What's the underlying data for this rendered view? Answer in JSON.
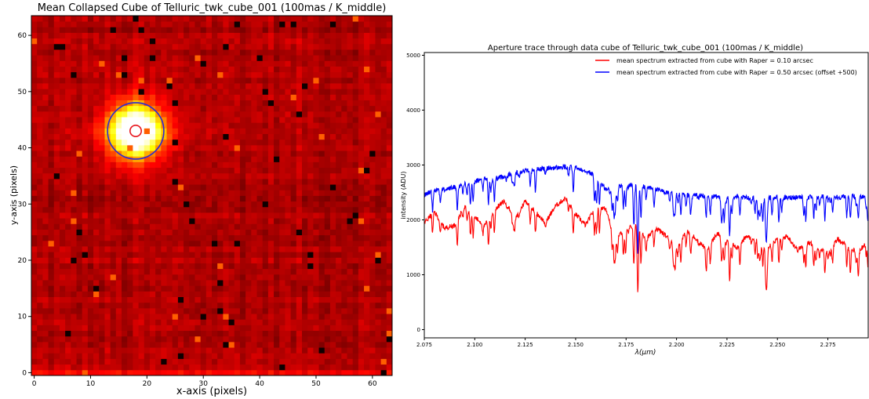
{
  "chart_data": [
    {
      "type": "heatmap",
      "title": "Mean Collapsed Cube of Telluric_twk_cube_001 (100mas / K_middle)",
      "xlabel": "x-axis (pixels)",
      "ylabel": "y-axis (pixels)",
      "xlim": [
        -0.5,
        63.5
      ],
      "ylim": [
        -0.5,
        63.5
      ],
      "xticks": [
        "0",
        "10",
        "20",
        "30",
        "40",
        "50",
        "60"
      ],
      "yticks": [
        "0",
        "10",
        "20",
        "30",
        "40",
        "50",
        "60"
      ],
      "colormap": "hot",
      "source": {
        "x": 18,
        "y": 43,
        "sigma": 3.2
      },
      "circles": [
        {
          "name": "",
          "x": 18,
          "y": 43,
          "radius": 1,
          "color": "#e8141c"
        },
        {
          "name": "",
          "x": 18,
          "y": 43,
          "radius": 5,
          "color": "#2a2ad6"
        }
      ]
    },
    {
      "type": "line",
      "title": "Aperture trace through data cube of Telluric_twk_cube_001 (100mas / K_middle)",
      "xlabel": "λ(μm)",
      "ylabel": "intensity (ADU)",
      "xlim": [
        2.075,
        2.295
      ],
      "ylim": [
        -150,
        5050
      ],
      "xticks": [
        "2.075",
        "2.100",
        "2.125",
        "2.150",
        "2.175",
        "2.200",
        "2.225",
        "2.250",
        "2.275"
      ],
      "yticks": [
        "0",
        "1000",
        "2000",
        "3000",
        "4000",
        "5000"
      ],
      "legend_position": "top-right",
      "series": [
        {
          "name": "mean spectrum extracted from cube with Raper = 0.10 arcsec",
          "color": "#ff0000",
          "x": [
            2.075,
            2.08,
            2.085,
            2.09,
            2.095,
            2.1,
            2.105,
            2.11,
            2.115,
            2.12,
            2.125,
            2.13,
            2.135,
            2.14,
            2.145,
            2.15,
            2.155,
            2.16,
            2.165,
            2.17,
            2.175,
            2.18,
            2.185,
            2.19,
            2.195,
            2.2,
            2.205,
            2.21,
            2.215,
            2.22,
            2.225,
            2.23,
            2.235,
            2.24,
            2.245,
            2.25,
            2.255,
            2.26,
            2.265,
            2.27,
            2.275,
            2.28,
            2.285,
            2.29,
            2.295
          ],
          "values": [
            1950,
            2150,
            1850,
            1900,
            2250,
            2050,
            1900,
            2200,
            2350,
            2000,
            2350,
            2150,
            1950,
            2250,
            2400,
            2100,
            1900,
            2250,
            2200,
            1700,
            1800,
            1950,
            1650,
            1850,
            1700,
            1500,
            1800,
            1650,
            1450,
            1750,
            1650,
            1500,
            1700,
            1650,
            1500,
            1650,
            1700,
            1450,
            1600,
            1500,
            1400,
            1650,
            1500,
            1400,
            1650
          ]
        },
        {
          "name": "mean spectrum extracted from cube with Raper = 0.50 arcsec (offset +500)",
          "color": "#0000ff",
          "x": [
            2.075,
            2.08,
            2.085,
            2.09,
            2.095,
            2.1,
            2.105,
            2.11,
            2.115,
            2.12,
            2.125,
            2.13,
            2.135,
            2.14,
            2.145,
            2.15,
            2.155,
            2.16,
            2.165,
            2.17,
            2.175,
            2.18,
            2.185,
            2.19,
            2.195,
            2.2,
            2.205,
            2.21,
            2.215,
            2.22,
            2.225,
            2.23,
            2.235,
            2.24,
            2.245,
            2.25,
            2.255,
            2.26,
            2.265,
            2.27,
            2.275,
            2.28,
            2.285,
            2.29,
            2.295
          ],
          "values": [
            2450,
            2550,
            2550,
            2600,
            2650,
            2700,
            2750,
            2750,
            2800,
            2850,
            2900,
            2920,
            2940,
            2950,
            2960,
            2950,
            2900,
            2800,
            2550,
            2600,
            2650,
            2620,
            2600,
            2550,
            2500,
            2480,
            2460,
            2450,
            2430,
            2420,
            2410,
            2420,
            2400,
            2410,
            2400,
            2410,
            2400,
            2420,
            2410,
            2420,
            2430,
            2410,
            2430,
            2420,
            2440
          ]
        }
      ]
    }
  ]
}
